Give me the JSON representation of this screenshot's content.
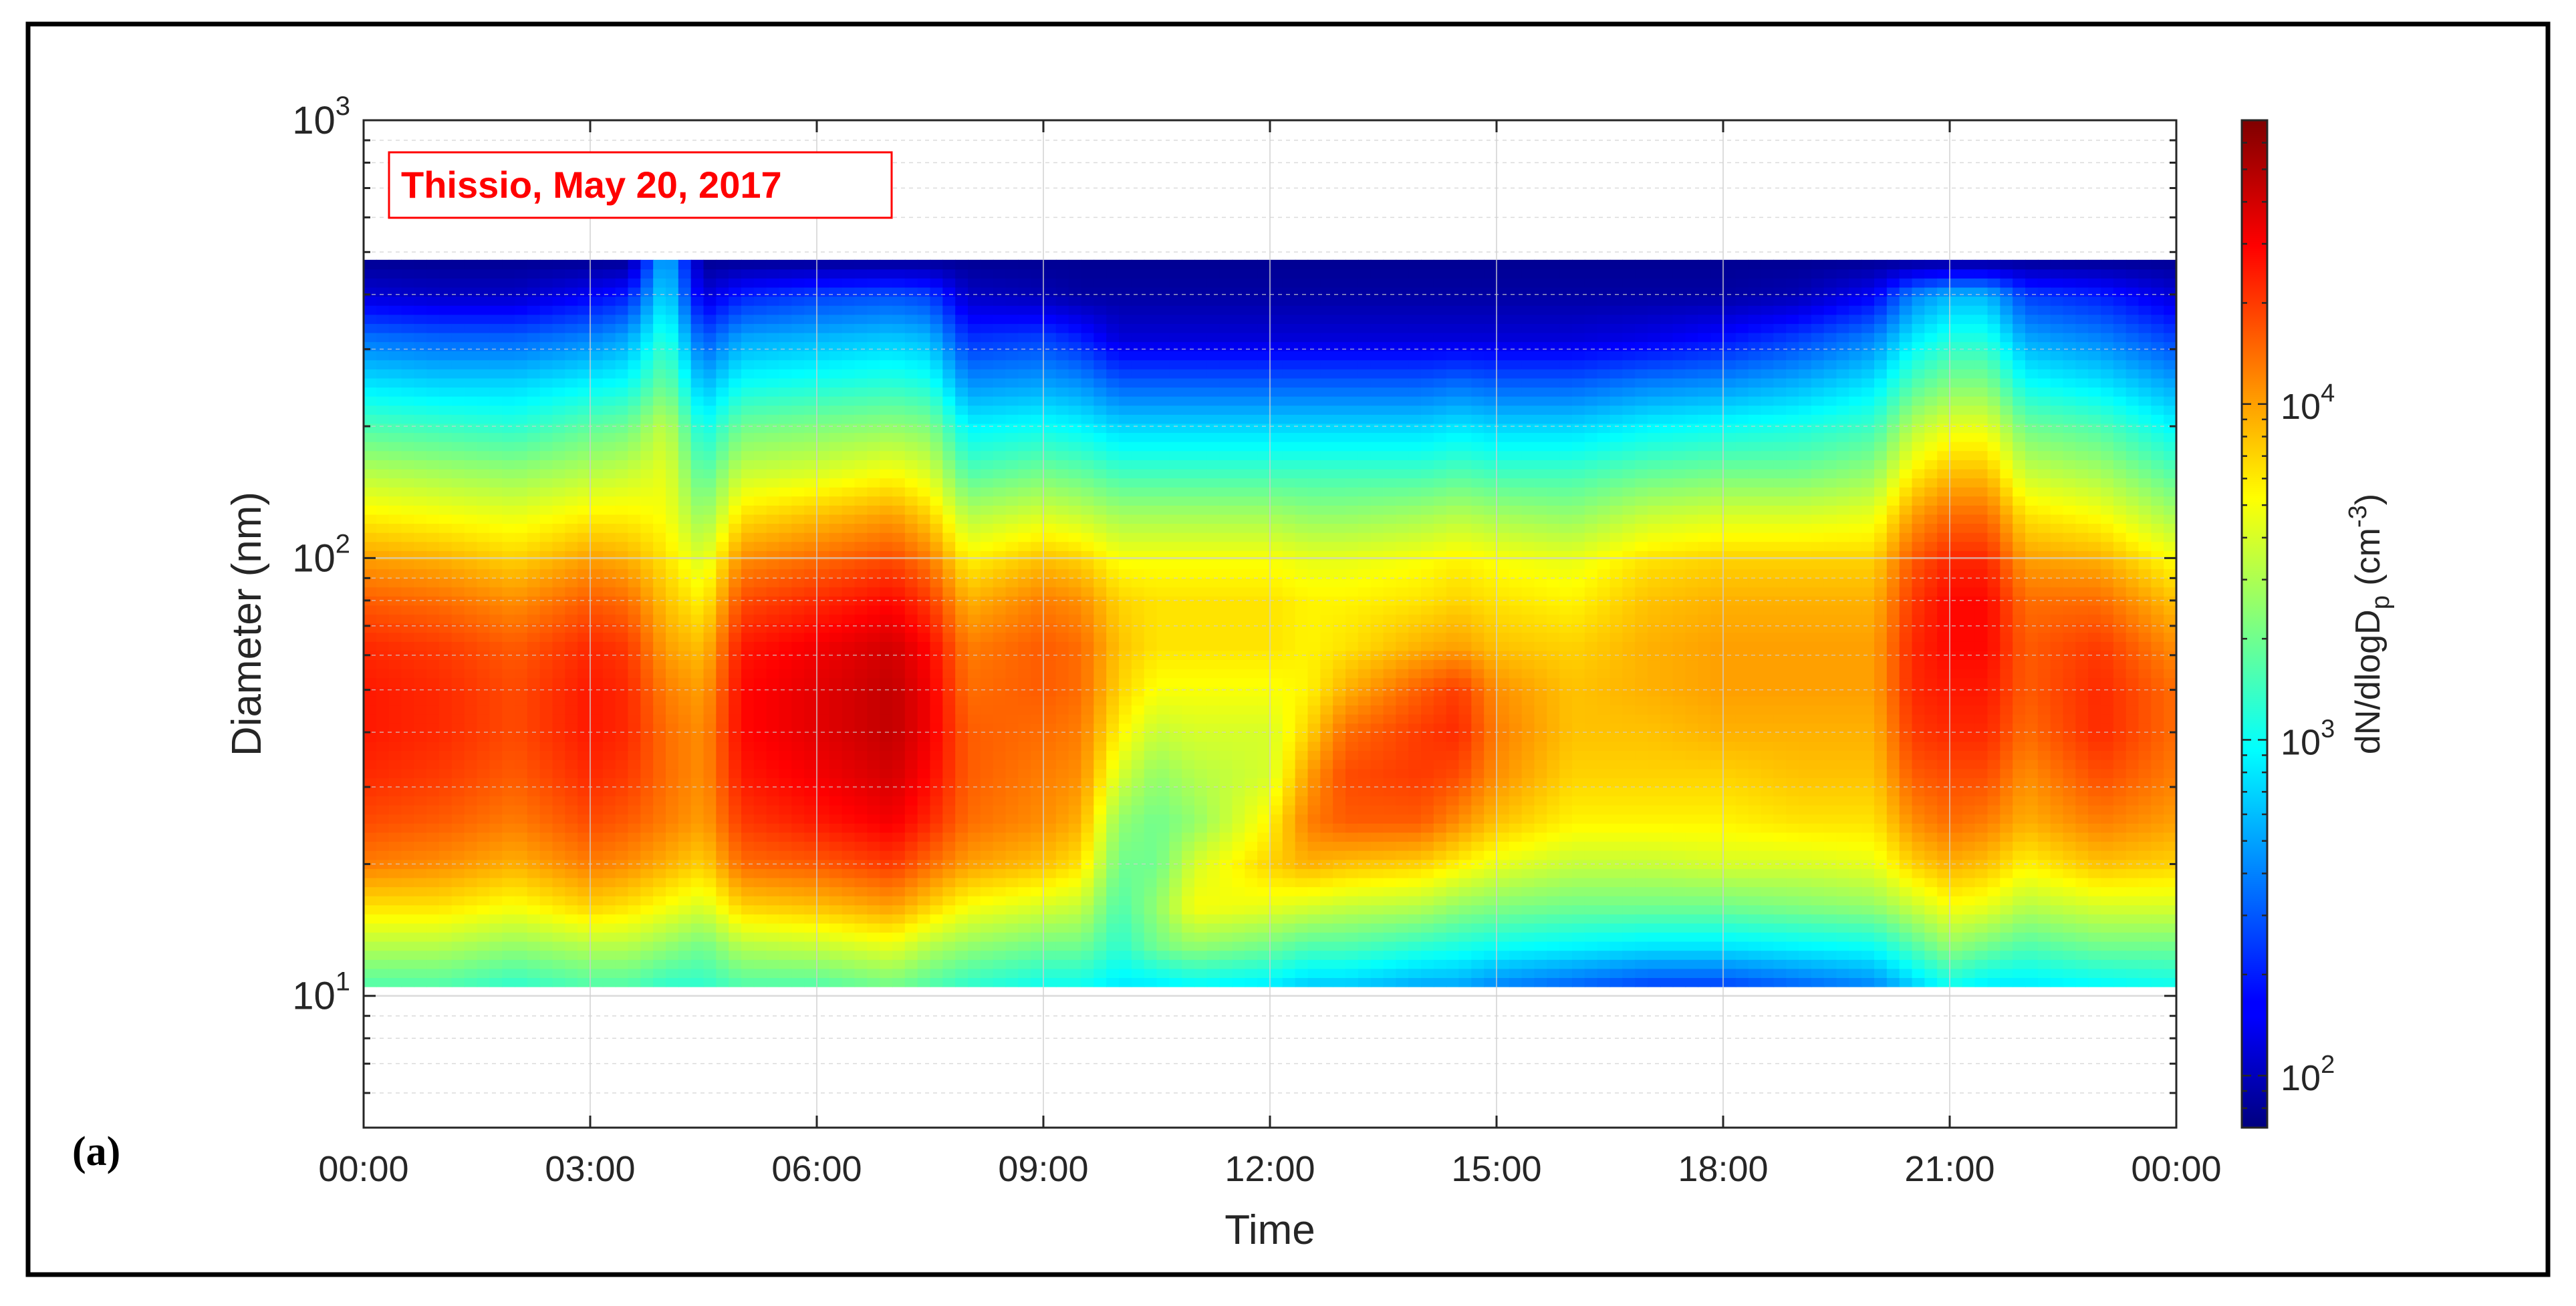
{
  "chart_data": {
    "type": "heatmap",
    "title": "Thissio, May 20, 2017",
    "panel_label": "(a)",
    "xlabel": "Time",
    "ylabel": "Diameter (nm)",
    "colorbar_label_main": "dN/dlogD",
    "colorbar_label_sub": "p",
    "colorbar_label_unit": " (cm",
    "colorbar_label_exp": "-3",
    "colorbar_label_close": ")",
    "x_ticks": [
      "00:00",
      "03:00",
      "06:00",
      "09:00",
      "12:00",
      "15:00",
      "18:00",
      "21:00",
      "00:00"
    ],
    "y_scale": "log",
    "ylim": [
      5,
      1000
    ],
    "y_tick_base": "10",
    "y_ticks": [
      {
        "value": 10,
        "exp": "1"
      },
      {
        "value": 100,
        "exp": "2"
      },
      {
        "value": 1000,
        "exp": "3"
      }
    ],
    "colorbar_scale": "log",
    "clim": [
      70,
      70000
    ],
    "colorbar_ticks": [
      {
        "value": 100,
        "exp": "2"
      },
      {
        "value": 1000,
        "exp": "3"
      },
      {
        "value": 10000,
        "exp": "4"
      }
    ],
    "colormap": "jet",
    "grid": true,
    "data_range_diameter_nm": [
      10.5,
      480
    ],
    "diameter_nm": [
      10.5,
      13,
      16,
      20,
      25,
      32,
      40,
      50,
      63,
      80,
      100,
      126,
      158,
      200,
      250,
      320,
      400,
      480
    ],
    "time_h": [
      0,
      1,
      2,
      3,
      3.5,
      4,
      4.5,
      5,
      6,
      7,
      7.5,
      8,
      9,
      9.5,
      10,
      10.5,
      11,
      12,
      12.5,
      13,
      14,
      14.5,
      15,
      16,
      17,
      18,
      19,
      20,
      20.5,
      21,
      21.5,
      22,
      23,
      24
    ],
    "log10_dNdlogDp": [
      [
        3.2,
        3.5,
        3.8,
        4.1,
        4.25,
        4.35,
        4.4,
        4.4,
        4.35,
        4.2,
        4.0,
        3.75,
        3.5,
        3.2,
        2.9,
        2.55,
        2.1,
        1.9
      ],
      [
        3.2,
        3.5,
        3.8,
        4.05,
        4.2,
        4.3,
        4.35,
        4.35,
        4.3,
        4.15,
        3.95,
        3.7,
        3.45,
        3.15,
        2.85,
        2.5,
        2.05,
        1.9
      ],
      [
        3.1,
        3.4,
        3.7,
        3.95,
        4.1,
        4.2,
        4.25,
        4.25,
        4.2,
        4.05,
        3.85,
        3.65,
        3.4,
        3.1,
        2.85,
        2.5,
        2.05,
        1.9
      ],
      [
        3.2,
        3.5,
        3.85,
        4.1,
        4.25,
        4.35,
        4.4,
        4.4,
        4.35,
        4.2,
        4.0,
        3.75,
        3.5,
        3.25,
        2.95,
        2.6,
        2.2,
        1.9
      ],
      [
        3.2,
        3.5,
        3.8,
        4.05,
        4.2,
        4.3,
        4.35,
        4.35,
        4.3,
        4.15,
        3.95,
        3.75,
        3.55,
        3.3,
        3.0,
        2.7,
        2.3,
        1.9
      ],
      [
        3.1,
        3.4,
        3.7,
        3.95,
        4.1,
        4.15,
        4.15,
        4.1,
        4.0,
        3.9,
        3.8,
        3.7,
        3.65,
        3.55,
        3.3,
        3.1,
        2.9,
        2.8
      ],
      [
        3.1,
        3.3,
        3.6,
        3.85,
        4.0,
        4.05,
        4.05,
        4.0,
        3.9,
        3.75,
        3.6,
        3.4,
        3.2,
        3.0,
        2.75,
        2.45,
        2.1,
        1.9
      ],
      [
        3.2,
        3.5,
        3.85,
        4.15,
        4.3,
        4.4,
        4.45,
        4.45,
        4.4,
        4.25,
        4.05,
        3.8,
        3.55,
        3.3,
        3.0,
        2.7,
        2.3,
        1.9
      ],
      [
        3.2,
        3.55,
        3.9,
        4.2,
        4.4,
        4.5,
        4.55,
        4.55,
        4.5,
        4.35,
        4.15,
        3.9,
        3.6,
        3.35,
        3.05,
        2.75,
        2.4,
        1.9
      ],
      [
        3.3,
        3.65,
        4.0,
        4.3,
        4.5,
        4.6,
        4.65,
        4.65,
        4.6,
        4.45,
        4.25,
        4.0,
        3.7,
        3.4,
        3.1,
        2.8,
        2.45,
        1.9
      ],
      [
        3.2,
        3.5,
        3.85,
        4.15,
        4.35,
        4.45,
        4.5,
        4.5,
        4.45,
        4.3,
        4.1,
        3.85,
        3.6,
        3.35,
        3.05,
        2.75,
        2.4,
        1.9
      ],
      [
        3.1,
        3.4,
        3.7,
        4.0,
        4.15,
        4.2,
        4.2,
        4.15,
        4.1,
        3.95,
        3.75,
        3.5,
        3.2,
        2.95,
        2.65,
        2.35,
        2.05,
        1.9
      ],
      [
        3.0,
        3.3,
        3.6,
        3.9,
        4.05,
        4.1,
        4.15,
        4.2,
        4.2,
        4.1,
        3.9,
        3.6,
        3.3,
        3.0,
        2.7,
        2.4,
        2.0,
        1.9
      ],
      [
        3.0,
        3.3,
        3.55,
        3.8,
        3.95,
        4.05,
        4.1,
        4.15,
        4.15,
        4.05,
        3.85,
        3.55,
        3.25,
        2.95,
        2.65,
        2.3,
        1.95,
        1.9
      ],
      [
        2.9,
        3.1,
        3.2,
        3.3,
        3.4,
        3.6,
        3.75,
        3.85,
        3.9,
        3.85,
        3.7,
        3.45,
        3.15,
        2.85,
        2.5,
        2.1,
        1.95,
        1.9
      ],
      [
        2.9,
        3.3,
        3.4,
        3.3,
        3.3,
        3.4,
        3.55,
        3.7,
        3.8,
        3.8,
        3.7,
        3.45,
        3.15,
        2.85,
        2.5,
        2.1,
        1.95,
        1.9
      ],
      [
        2.95,
        3.4,
        3.7,
        3.6,
        3.4,
        3.5,
        3.6,
        3.7,
        3.8,
        3.8,
        3.7,
        3.45,
        3.15,
        2.85,
        2.5,
        2.1,
        1.95,
        1.9
      ],
      [
        2.9,
        3.3,
        3.65,
        3.85,
        3.75,
        3.6,
        3.6,
        3.7,
        3.8,
        3.8,
        3.7,
        3.45,
        3.15,
        2.85,
        2.5,
        2.1,
        1.95,
        1.9
      ],
      [
        2.8,
        3.2,
        3.6,
        3.95,
        4.1,
        4.0,
        3.85,
        3.75,
        3.75,
        3.75,
        3.65,
        3.4,
        3.15,
        2.85,
        2.5,
        2.1,
        1.95,
        1.9
      ],
      [
        2.8,
        3.2,
        3.55,
        3.9,
        4.2,
        4.25,
        4.15,
        3.95,
        3.8,
        3.75,
        3.65,
        3.4,
        3.15,
        2.85,
        2.5,
        2.1,
        1.95,
        1.9
      ],
      [
        2.7,
        3.1,
        3.5,
        3.85,
        4.2,
        4.3,
        4.3,
        4.2,
        3.95,
        3.8,
        3.7,
        3.45,
        3.15,
        2.85,
        2.5,
        2.1,
        1.95,
        1.9
      ],
      [
        2.7,
        3.05,
        3.4,
        3.75,
        4.05,
        4.25,
        4.35,
        4.3,
        4.0,
        3.85,
        3.75,
        3.5,
        3.2,
        2.9,
        2.55,
        2.1,
        1.95,
        1.9
      ],
      [
        2.6,
        3.0,
        3.35,
        3.65,
        3.9,
        4.05,
        4.1,
        4.05,
        3.9,
        3.8,
        3.7,
        3.45,
        3.15,
        2.85,
        2.5,
        2.1,
        1.95,
        1.9
      ],
      [
        2.5,
        2.95,
        3.3,
        3.55,
        3.75,
        3.85,
        3.9,
        3.9,
        3.85,
        3.75,
        3.65,
        3.4,
        3.15,
        2.85,
        2.5,
        2.1,
        1.95,
        1.9
      ],
      [
        2.4,
        2.9,
        3.3,
        3.55,
        3.75,
        3.85,
        3.9,
        3.95,
        3.95,
        3.9,
        3.8,
        3.55,
        3.25,
        2.95,
        2.6,
        2.15,
        1.95,
        1.9
      ],
      [
        2.4,
        2.9,
        3.3,
        3.6,
        3.75,
        3.85,
        3.95,
        4.0,
        4.0,
        3.95,
        3.85,
        3.6,
        3.3,
        3.0,
        2.65,
        2.25,
        1.95,
        1.9
      ],
      [
        2.5,
        2.95,
        3.35,
        3.6,
        3.8,
        3.9,
        3.95,
        4.0,
        4.0,
        3.95,
        3.85,
        3.6,
        3.3,
        3.05,
        2.75,
        2.4,
        2.0,
        1.9
      ],
      [
        2.6,
        3.0,
        3.4,
        3.65,
        3.8,
        3.9,
        3.95,
        4.0,
        4.0,
        3.95,
        3.85,
        3.65,
        3.4,
        3.15,
        2.9,
        2.6,
        2.2,
        1.9
      ],
      [
        2.8,
        3.2,
        3.55,
        3.85,
        4.05,
        4.2,
        4.3,
        4.35,
        4.35,
        4.3,
        4.2,
        4.0,
        3.75,
        3.5,
        3.2,
        2.9,
        2.6,
        1.9
      ],
      [
        3.0,
        3.4,
        3.7,
        3.95,
        4.15,
        4.25,
        4.35,
        4.4,
        4.45,
        4.45,
        4.35,
        4.15,
        3.9,
        3.65,
        3.35,
        3.05,
        2.75,
        1.9
      ],
      [
        2.9,
        3.3,
        3.65,
        3.9,
        4.1,
        4.25,
        4.35,
        4.4,
        4.45,
        4.45,
        4.35,
        4.15,
        3.9,
        3.65,
        3.35,
        3.05,
        2.75,
        1.9
      ],
      [
        2.9,
        3.2,
        3.5,
        3.75,
        3.95,
        4.05,
        4.15,
        4.2,
        4.2,
        4.15,
        4.0,
        3.8,
        3.55,
        3.3,
        3.0,
        2.7,
        2.4,
        1.9
      ],
      [
        2.95,
        3.3,
        3.6,
        3.9,
        4.1,
        4.25,
        4.35,
        4.35,
        4.3,
        4.15,
        3.95,
        3.7,
        3.45,
        3.2,
        2.9,
        2.6,
        2.3,
        1.9
      ],
      [
        3.0,
        3.3,
        3.6,
        3.85,
        4.0,
        4.1,
        4.15,
        4.15,
        4.05,
        3.9,
        3.7,
        3.45,
        3.2,
        2.95,
        2.7,
        2.4,
        2.1,
        1.9
      ]
    ]
  }
}
